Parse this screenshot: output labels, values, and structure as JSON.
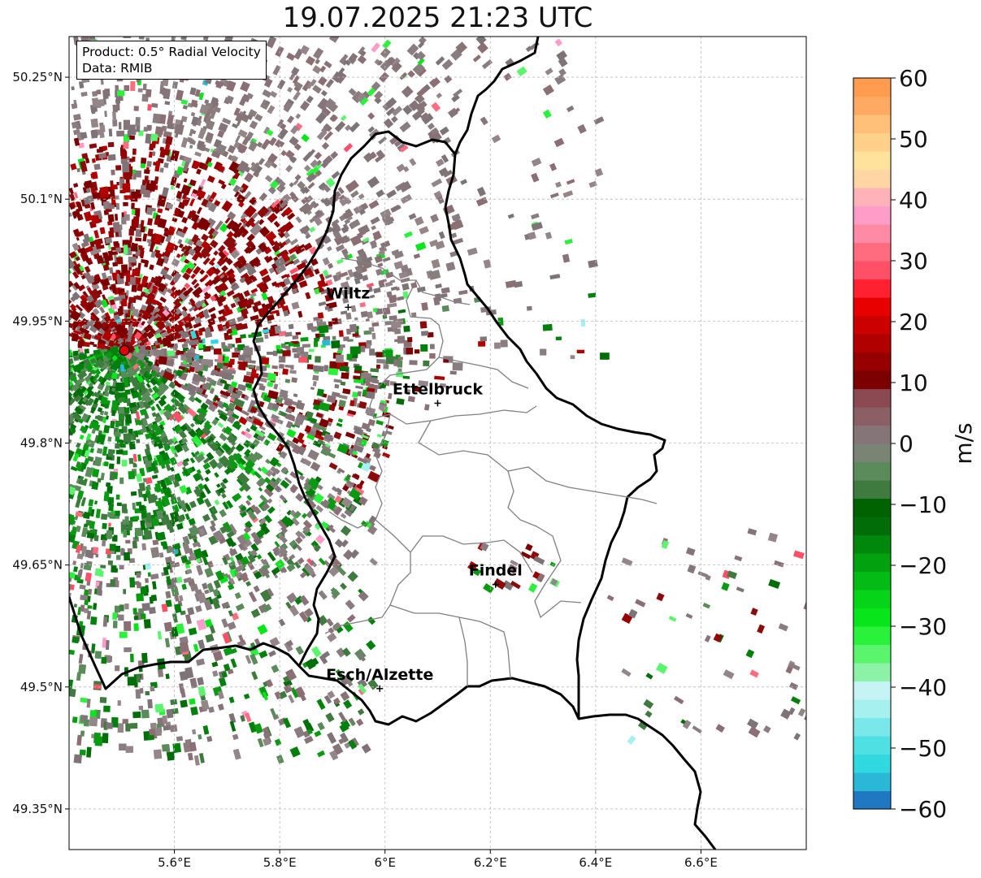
{
  "title": "19.07.2025 21:23 UTC",
  "info": {
    "product": "Product: 0.5° Radial Velocity",
    "source": "Data: RMIB"
  },
  "map": {
    "lon_range": [
      5.4,
      6.8
    ],
    "lat_range": [
      49.3,
      50.3
    ],
    "lon_ticks": [
      "5.6°E",
      "5.8°E",
      "6°E",
      "6.2°E",
      "6.4°E",
      "6.6°E"
    ],
    "lat_ticks": [
      "50.25°N",
      "50.1°N",
      "49.95°N",
      "49.8°N",
      "49.65°N",
      "49.5°N",
      "49.35°N"
    ],
    "grid": true,
    "radar_site": {
      "lon": 5.505,
      "lat": 49.914,
      "color": "#e00000"
    },
    "cities": [
      {
        "name": "Wiltz",
        "lon": 5.93,
        "lat": 49.967
      },
      {
        "name": "Ettelbruck",
        "lon": 6.1,
        "lat": 49.849
      },
      {
        "name": "Findel",
        "lon": 6.21,
        "lat": 49.626
      },
      {
        "name": "Esch/Alzette",
        "lon": 5.99,
        "lat": 49.498
      }
    ]
  },
  "colorbar": {
    "label": "m/s",
    "range": [
      -60,
      60
    ],
    "ticks": [
      "60",
      "50",
      "40",
      "30",
      "20",
      "10",
      "0",
      "−10",
      "−20",
      "−30",
      "−40",
      "−50",
      "−60"
    ],
    "colors": [
      "#1f78c1",
      "#2ab8d6",
      "#2fd9df",
      "#4fe0e3",
      "#7ae8ea",
      "#a6f0f0",
      "#c6f4f4",
      "#8df2a8",
      "#5af56c",
      "#2af23a",
      "#08e61b",
      "#05d418",
      "#03bb14",
      "#02a110",
      "#00880c",
      "#006d08",
      "#006200",
      "#3f7a3f",
      "#5b8b5b",
      "#7a8474",
      "#857478",
      "#8a5f66",
      "#8b4a52",
      "#7d0000",
      "#960000",
      "#b00000",
      "#cc0000",
      "#e80000",
      "#ff2030",
      "#ff5068",
      "#ff6c80",
      "#ff8aa6",
      "#ff9cc8",
      "#ffb2b8",
      "#ffd6a4",
      "#ffe39c",
      "#ffd08a",
      "#ffc07a",
      "#ffaa62",
      "#ff9c50"
    ]
  }
}
